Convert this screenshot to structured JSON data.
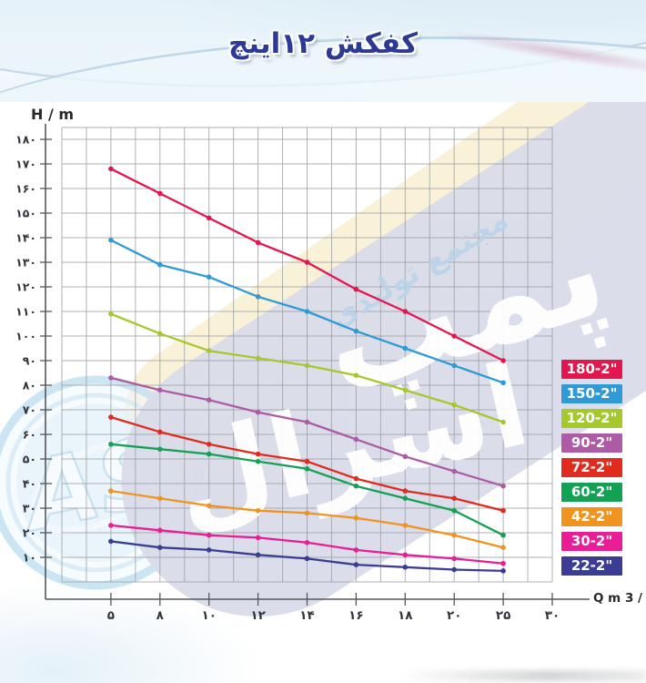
{
  "title": "کفکش ۱۲اینچ",
  "watermarks": {
    "pump_script": "پمپ",
    "brand_script": "اسرال",
    "factory_script": "مجتمع تولیدی",
    "logo_monogram": "AS"
  },
  "chart_data": {
    "type": "line",
    "title": "کفکش ۱۲اینچ",
    "xlabel": "Q m 3 / h",
    "ylabel": "H / m",
    "x": [
      5,
      8,
      10,
      12,
      14,
      16,
      18,
      20,
      25
    ],
    "x_ticks": [
      5,
      8,
      10,
      12,
      14,
      16,
      18,
      20,
      25,
      30
    ],
    "x_tick_labels": [
      "۵",
      "۸",
      "۱۰",
      "۱۲",
      "۱۴",
      "۱۶",
      "۱۸",
      "۲۰",
      "۲۵",
      "۳۰"
    ],
    "y_ticks": [
      10,
      20,
      30,
      40,
      50,
      60,
      70,
      80,
      90,
      100,
      110,
      120,
      130,
      140,
      150,
      160,
      170,
      180
    ],
    "y_tick_labels": [
      "۱۰",
      "۲۰",
      "۳۰",
      "۴۰",
      "۵۰",
      "۶۰",
      "۷۰",
      "۸۰",
      "۹۰",
      "۱۰۰",
      "۱۱۰",
      "۱۲۰",
      "۱۳۰",
      "۱۴۰",
      "۱۵۰",
      "۱۶۰",
      "۱۷۰",
      "۱۸۰"
    ],
    "ylim": [
      0,
      185
    ],
    "grid": true,
    "legend_position": "right",
    "x_axis_note": "categories equally spaced",
    "series": [
      {
        "name": "180-2\"",
        "color": "#e4164f",
        "values": [
          168,
          158,
          148,
          138,
          130,
          119,
          110,
          100,
          90
        ]
      },
      {
        "name": "150-2\"",
        "color": "#2f9ad6",
        "values": [
          139,
          129,
          124,
          116,
          110,
          102,
          95,
          88,
          81
        ]
      },
      {
        "name": "120-2\"",
        "color": "#a5c82d",
        "values": [
          109,
          101,
          94,
          91,
          88,
          84,
          78,
          72,
          65
        ]
      },
      {
        "name": "90-2\"",
        "color": "#ae5ba6",
        "values": [
          83,
          78,
          74,
          69,
          65,
          58,
          51,
          45,
          39
        ]
      },
      {
        "name": "72-2\"",
        "color": "#e02b1e",
        "values": [
          67,
          61,
          56,
          52,
          49,
          42,
          37,
          34,
          29
        ]
      },
      {
        "name": "60-2\"",
        "color": "#14a155",
        "values": [
          56,
          54,
          52,
          49,
          46,
          39,
          34,
          29,
          19
        ]
      },
      {
        "name": "42-2\"",
        "color": "#f0931f",
        "values": [
          37,
          34,
          31,
          29,
          28,
          26,
          23,
          19,
          14
        ]
      },
      {
        "name": "30-2\"",
        "color": "#e71e95",
        "values": [
          23,
          21,
          19,
          18,
          16,
          13,
          11,
          9.5,
          7.5
        ]
      },
      {
        "name": "22-2\"",
        "color": "#3b3d94",
        "values": [
          16.5,
          14,
          13,
          11,
          9.5,
          7,
          6,
          5,
          4.5
        ]
      }
    ]
  }
}
